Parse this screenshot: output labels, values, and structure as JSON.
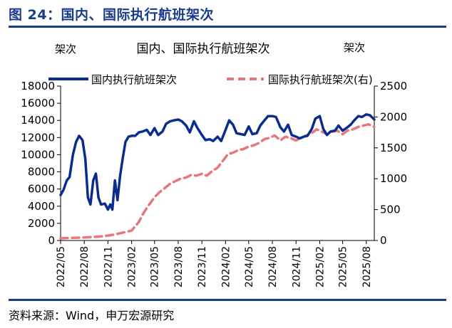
{
  "figure": {
    "title": "图 24：国内、国际执行航班架次",
    "source": "资料来源：Wind，申万宏源研究"
  },
  "colors": {
    "domestic": "#0b2c8f",
    "international": "#e8777a",
    "heading": "#1a3a8c",
    "axis": "#000000"
  },
  "chart_data": {
    "type": "line",
    "title": "国内、国际执行航班架次",
    "ylabel": "架次",
    "y2label": "架次",
    "xlabel": "",
    "ylim": [
      0,
      18000
    ],
    "y2lim": [
      0,
      2500
    ],
    "yticks": [
      0,
      2000,
      4000,
      6000,
      8000,
      10000,
      12000,
      14000,
      16000,
      18000
    ],
    "y2ticks": [
      0,
      500,
      1000,
      1500,
      2000,
      2500
    ],
    "xlim": [
      "2022-05",
      "2025-09"
    ],
    "xticks": [
      "2022/05",
      "2022/08",
      "2022/11",
      "2023/02",
      "2023/05",
      "2023/08",
      "2023/11",
      "2024/02",
      "2024/05",
      "2024/08",
      "2024/11",
      "2025/02",
      "2025/05",
      "2025/08"
    ],
    "legend_position": "top",
    "series": [
      {
        "name": "国内执行航班架次",
        "axis": "left",
        "style": "solid",
        "points": [
          [
            "2022-05-01",
            5300
          ],
          [
            "2022-05-12",
            5900
          ],
          [
            "2022-05-25",
            7000
          ],
          [
            "2022-06-05",
            7400
          ],
          [
            "2022-06-18",
            10000
          ],
          [
            "2022-06-30",
            11500
          ],
          [
            "2022-07-12",
            12200
          ],
          [
            "2022-07-25",
            11700
          ],
          [
            "2022-08-05",
            9500
          ],
          [
            "2022-08-15",
            5000
          ],
          [
            "2022-08-25",
            4200
          ],
          [
            "2022-09-05",
            7000
          ],
          [
            "2022-09-15",
            7800
          ],
          [
            "2022-09-25",
            5000
          ],
          [
            "2022-10-05",
            4200
          ],
          [
            "2022-10-20",
            4300
          ],
          [
            "2022-11-01",
            3600
          ],
          [
            "2022-11-10",
            4200
          ],
          [
            "2022-11-18",
            3600
          ],
          [
            "2022-11-28",
            7000
          ],
          [
            "2022-12-08",
            4700
          ],
          [
            "2022-12-18",
            7500
          ],
          [
            "2022-12-28",
            9500
          ],
          [
            "2023-01-08",
            11500
          ],
          [
            "2023-01-20",
            12100
          ],
          [
            "2023-02-01",
            12200
          ],
          [
            "2023-02-15",
            12200
          ],
          [
            "2023-03-01",
            12600
          ],
          [
            "2023-03-15",
            12700
          ],
          [
            "2023-04-01",
            12900
          ],
          [
            "2023-04-15",
            12300
          ],
          [
            "2023-05-01",
            13100
          ],
          [
            "2023-05-15",
            12300
          ],
          [
            "2023-06-01",
            12700
          ],
          [
            "2023-06-15",
            13600
          ],
          [
            "2023-07-01",
            13900
          ],
          [
            "2023-07-15",
            14000
          ],
          [
            "2023-08-01",
            14100
          ],
          [
            "2023-08-15",
            13900
          ],
          [
            "2023-09-01",
            13400
          ],
          [
            "2023-09-15",
            12600
          ],
          [
            "2023-10-01",
            13900
          ],
          [
            "2023-10-15",
            13100
          ],
          [
            "2023-11-01",
            12300
          ],
          [
            "2023-11-15",
            11700
          ],
          [
            "2023-12-01",
            11800
          ],
          [
            "2023-12-15",
            11600
          ],
          [
            "2024-01-01",
            12100
          ],
          [
            "2024-01-15",
            11600
          ],
          [
            "2024-02-01",
            12900
          ],
          [
            "2024-02-15",
            14000
          ],
          [
            "2024-03-01",
            13500
          ],
          [
            "2024-03-15",
            12500
          ],
          [
            "2024-04-01",
            12400
          ],
          [
            "2024-04-15",
            12300
          ],
          [
            "2024-05-01",
            13300
          ],
          [
            "2024-05-15",
            12400
          ],
          [
            "2024-06-01",
            12500
          ],
          [
            "2024-06-15",
            13400
          ],
          [
            "2024-07-01",
            14000
          ],
          [
            "2024-07-15",
            14500
          ],
          [
            "2024-08-01",
            14500
          ],
          [
            "2024-08-15",
            14400
          ],
          [
            "2024-09-01",
            13200
          ],
          [
            "2024-09-15",
            12700
          ],
          [
            "2024-10-01",
            13500
          ],
          [
            "2024-10-15",
            12300
          ],
          [
            "2024-11-01",
            12100
          ],
          [
            "2024-11-15",
            11900
          ],
          [
            "2024-12-01",
            12100
          ],
          [
            "2024-12-15",
            12200
          ],
          [
            "2025-01-01",
            13000
          ],
          [
            "2025-01-15",
            14200
          ],
          [
            "2025-02-01",
            14500
          ],
          [
            "2025-02-15",
            13000
          ],
          [
            "2025-03-01",
            12300
          ],
          [
            "2025-03-15",
            12700
          ],
          [
            "2025-04-01",
            12800
          ],
          [
            "2025-04-15",
            13400
          ],
          [
            "2025-05-01",
            12800
          ],
          [
            "2025-05-15",
            13100
          ],
          [
            "2025-06-01",
            13500
          ],
          [
            "2025-06-15",
            14000
          ],
          [
            "2025-07-01",
            14500
          ],
          [
            "2025-07-15",
            14400
          ],
          [
            "2025-08-01",
            14700
          ],
          [
            "2025-08-15",
            14600
          ],
          [
            "2025-09-01",
            14100
          ]
        ]
      },
      {
        "name": "国际执行航班架次(右)",
        "axis": "right",
        "style": "dashed",
        "points": [
          [
            "2022-05-01",
            35
          ],
          [
            "2022-06-01",
            40
          ],
          [
            "2022-07-01",
            45
          ],
          [
            "2022-08-01",
            50
          ],
          [
            "2022-09-01",
            55
          ],
          [
            "2022-10-01",
            65
          ],
          [
            "2022-11-01",
            80
          ],
          [
            "2022-12-01",
            100
          ],
          [
            "2023-01-01",
            130
          ],
          [
            "2023-02-01",
            160
          ],
          [
            "2023-03-01",
            300
          ],
          [
            "2023-03-20",
            450
          ],
          [
            "2023-04-10",
            580
          ],
          [
            "2023-05-01",
            700
          ],
          [
            "2023-05-20",
            780
          ],
          [
            "2023-06-10",
            850
          ],
          [
            "2023-07-01",
            920
          ],
          [
            "2023-07-20",
            960
          ],
          [
            "2023-08-10",
            1000
          ],
          [
            "2023-09-01",
            1020
          ],
          [
            "2023-09-20",
            1060
          ],
          [
            "2023-10-10",
            1050
          ],
          [
            "2023-11-01",
            1080
          ],
          [
            "2023-11-20",
            1050
          ],
          [
            "2023-12-10",
            1120
          ],
          [
            "2024-01-01",
            1180
          ],
          [
            "2024-01-20",
            1280
          ],
          [
            "2024-02-10",
            1400
          ],
          [
            "2024-03-01",
            1420
          ],
          [
            "2024-03-20",
            1460
          ],
          [
            "2024-04-10",
            1480
          ],
          [
            "2024-05-01",
            1520
          ],
          [
            "2024-05-20",
            1540
          ],
          [
            "2024-06-10",
            1580
          ],
          [
            "2024-07-01",
            1640
          ],
          [
            "2024-07-20",
            1660
          ],
          [
            "2024-08-10",
            1700
          ],
          [
            "2024-09-01",
            1620
          ],
          [
            "2024-09-20",
            1680
          ],
          [
            "2024-10-10",
            1660
          ],
          [
            "2024-11-01",
            1620
          ],
          [
            "2024-11-20",
            1660
          ],
          [
            "2024-12-10",
            1700
          ],
          [
            "2025-01-01",
            1740
          ],
          [
            "2025-01-20",
            1800
          ],
          [
            "2025-02-10",
            1760
          ],
          [
            "2025-03-01",
            1720
          ],
          [
            "2025-03-20",
            1760
          ],
          [
            "2025-04-10",
            1780
          ],
          [
            "2025-05-01",
            1720
          ],
          [
            "2025-05-20",
            1780
          ],
          [
            "2025-06-10",
            1800
          ],
          [
            "2025-07-01",
            1840
          ],
          [
            "2025-07-20",
            1860
          ],
          [
            "2025-08-10",
            1880
          ],
          [
            "2025-09-01",
            1840
          ]
        ]
      }
    ]
  }
}
